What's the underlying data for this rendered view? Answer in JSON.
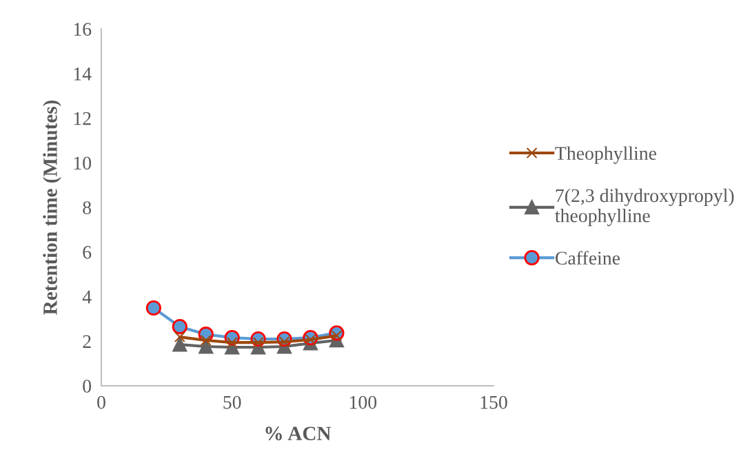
{
  "chart_data": {
    "type": "line",
    "xlabel": "% ACN",
    "ylabel": "Retention time (Minutes)",
    "xlim": [
      0,
      150
    ],
    "xticks": [
      0,
      50,
      100,
      150
    ],
    "ylim": [
      0,
      16
    ],
    "yticks": [
      0,
      2,
      4,
      6,
      8,
      10,
      12,
      14,
      16
    ],
    "grid": false,
    "legend": "right",
    "series": [
      {
        "name": "Theophylline",
        "color": "#9e480e",
        "marker": "cross",
        "x": [
          30,
          40,
          50,
          60,
          70,
          80,
          90
        ],
        "values": [
          2.19,
          2.04,
          1.94,
          1.94,
          1.97,
          2.07,
          2.25
        ]
      },
      {
        "name": "7(2,3 dihydroxypropyl)\ntheophylline",
        "color": "#636363",
        "marker": "triangle",
        "x": [
          30,
          40,
          50,
          60,
          70,
          80,
          90
        ],
        "values": [
          1.85,
          1.76,
          1.73,
          1.73,
          1.76,
          1.91,
          2.04
        ]
      },
      {
        "name": "Caffeine",
        "color": "#5b9bd5",
        "marker": "circle",
        "x": [
          20,
          30,
          40,
          50,
          60,
          70,
          80,
          90
        ],
        "values": [
          3.49,
          2.65,
          2.31,
          2.16,
          2.1,
          2.1,
          2.16,
          2.37
        ]
      }
    ]
  }
}
